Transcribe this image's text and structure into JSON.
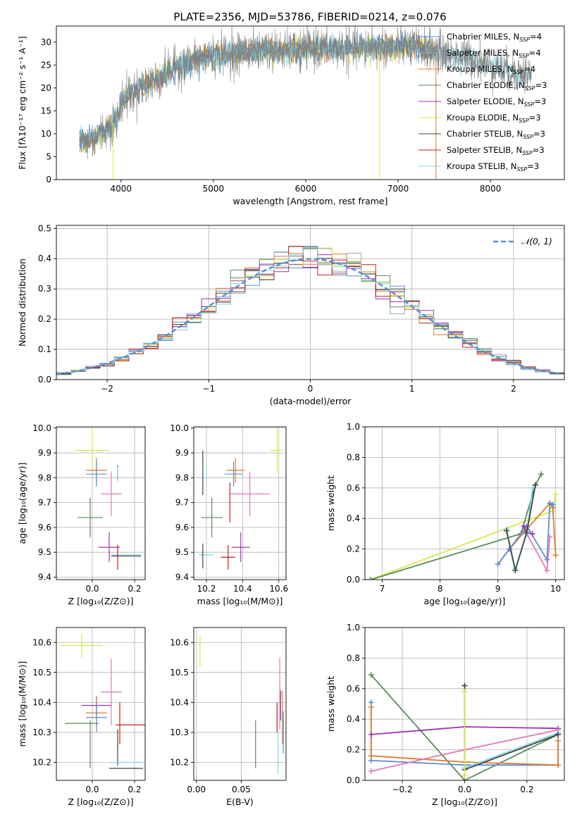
{
  "title": "PLATE=2356, MJD=53786, FIBERID=0214, z=0.076",
  "colors": {
    "chabrier_miles": "#5b8ed6",
    "salpeter_miles": "#9aa6b8",
    "kroupa_miles": "#e07c2a",
    "chabrier_elodie": "#5a8a5a",
    "salpeter_elodie": "#a032b0",
    "kroupa_elodie": "#d8e84a",
    "chabrier_stelib": "#444444",
    "salpeter_stelib": "#c81e1e",
    "kroupa_stelib": "#7fd8e8",
    "pink": "#e07ab8",
    "normal": "#5b8ed6",
    "grid": "#b0b0b0"
  },
  "chart_data": [
    {
      "id": "spectrum",
      "type": "line",
      "xlabel": "wavelength [Angstrom, rest frame]",
      "ylabel": "Flux [fλ10⁻¹⁷ erg cm⁻² s⁻¹ A⁻¹]",
      "xlim": [
        3300,
        8800
      ],
      "ylim": [
        0,
        33.5
      ],
      "xticks": [
        4000,
        5000,
        6000,
        7000,
        8000
      ],
      "yticks": [
        0,
        5,
        10,
        15,
        20,
        25,
        30
      ],
      "grid": false,
      "legend": "upper-right",
      "legend_entries": [
        {
          "label": "Chabrier MILES, N",
          "sub": "SSP",
          "tail": "=4",
          "color": "chabrier_miles"
        },
        {
          "label": "Salpeter MILES, N",
          "sub": "SSP",
          "tail": "=4",
          "color": "salpeter_miles"
        },
        {
          "label": "Kroupa MILES, N",
          "sub": "SSP",
          "tail": "=4",
          "color": "kroupa_miles"
        },
        {
          "label": "Chabrier ELODIE, N",
          "sub": "SSP",
          "tail": "=3",
          "color": "chabrier_elodie"
        },
        {
          "label": "Salpeter ELODIE, N",
          "sub": "SSP",
          "tail": "=3",
          "color": "salpeter_elodie"
        },
        {
          "label": "Kroupa ELODIE, N",
          "sub": "SSP",
          "tail": "=3",
          "color": "kroupa_elodie"
        },
        {
          "label": "Chabrier STELIB, N",
          "sub": "SSP",
          "tail": "=3",
          "color": "chabrier_stelib"
        },
        {
          "label": "Salpeter STELIB, N",
          "sub": "SSP",
          "tail": "=3",
          "color": "salpeter_stelib"
        },
        {
          "label": "Kroupa STELIB, N",
          "sub": "SSP",
          "tail": "=3",
          "color": "kroupa_stelib"
        }
      ],
      "data_range": [
        3550,
        8450
      ],
      "continuum": [
        [
          3550,
          8
        ],
        [
          3700,
          9
        ],
        [
          3900,
          12
        ],
        [
          3950,
          13
        ],
        [
          4000,
          17
        ],
        [
          4200,
          20
        ],
        [
          4400,
          22
        ],
        [
          4600,
          24.5
        ],
        [
          4800,
          26
        ],
        [
          5000,
          27
        ],
        [
          5200,
          27.5
        ],
        [
          5400,
          28
        ],
        [
          5600,
          28.5
        ],
        [
          5800,
          28
        ],
        [
          6000,
          28.5
        ],
        [
          6200,
          28.5
        ],
        [
          6500,
          28.5
        ],
        [
          6800,
          29
        ],
        [
          7000,
          29
        ],
        [
          7200,
          29
        ],
        [
          7400,
          28
        ],
        [
          7600,
          27
        ],
        [
          7800,
          26.5
        ],
        [
          8000,
          25
        ],
        [
          8200,
          23.5
        ],
        [
          8450,
          23
        ]
      ]
    },
    {
      "id": "residuals",
      "type": "histogram",
      "xlabel": "(data-model)/error",
      "ylabel": "Normed distribution",
      "xlim": [
        -2.5,
        2.5
      ],
      "ylim": [
        0,
        0.51
      ],
      "xticks": [
        -2,
        -1,
        0,
        1,
        2
      ],
      "yticks": [
        0.0,
        0.1,
        0.2,
        0.3,
        0.4,
        0.5
      ],
      "grid": true,
      "legend": "upper-right",
      "legend_label": "𝒩(0, 1)",
      "bins": 35
    },
    {
      "id": "age_vs_z",
      "type": "scatter",
      "xlabel": "Z [log₁₀(Z/Z⊙)]",
      "ylabel": "age  [log₁₀(age/yr)]",
      "xlim": [
        -0.17,
        0.25
      ],
      "ylim": [
        9.39,
        10.005
      ],
      "xticks": [
        0.0,
        0.2
      ],
      "yticks": [
        9.4,
        9.5,
        9.6,
        9.7,
        9.8,
        9.9,
        10.0
      ],
      "grid": true,
      "points": [
        {
          "x": 0.0,
          "y": 9.91,
          "xe": 0.08,
          "ye": 0.09,
          "color": "kroupa_elodie"
        },
        {
          "x": 0.02,
          "y": 9.83,
          "xe": 0.05,
          "ye": 0.05,
          "color": "kroupa_miles"
        },
        {
          "x": 0.02,
          "y": 9.815,
          "xe": 0.05,
          "ye": 0.05,
          "color": "chabrier_miles"
        },
        {
          "x": 0.12,
          "y": 9.82,
          "xe": 0.0,
          "ye": 0.03,
          "color": "chabrier_stelib"
        },
        {
          "x": 0.12,
          "y": 9.815,
          "xe": 0.0,
          "ye": 0.03,
          "color": "kroupa_stelib"
        },
        {
          "x": 0.09,
          "y": 9.735,
          "xe": 0.05,
          "ye": 0.09,
          "color": "pink"
        },
        {
          "x": -0.01,
          "y": 9.64,
          "xe": 0.06,
          "ye": 0.08,
          "color": "chabrier_elodie"
        },
        {
          "x": 0.08,
          "y": 9.52,
          "xe": 0.05,
          "ye": 0.06,
          "color": "salpeter_elodie"
        },
        {
          "x": 0.16,
          "y": 9.49,
          "xe": 0.07,
          "ye": 0.0,
          "color": "kroupa_stelib"
        },
        {
          "x": 0.16,
          "y": 9.485,
          "xe": 0.07,
          "ye": 0.0,
          "color": "chabrier_stelib"
        },
        {
          "x": 0.12,
          "y": 9.48,
          "xe": 0.0,
          "ye": 0.05,
          "color": "salpeter_stelib"
        }
      ]
    },
    {
      "id": "age_vs_mass",
      "type": "scatter",
      "xlabel": "mass [log₁₀(M/M⊙)]",
      "ylabel": "",
      "xlim": [
        10.13,
        10.64
      ],
      "ylim": [
        9.39,
        10.005
      ],
      "xticks": [
        10.2,
        10.4,
        10.6
      ],
      "yticks": [
        9.4,
        9.5,
        9.6,
        9.7,
        9.8,
        9.9,
        10.0
      ],
      "grid": true,
      "points": [
        {
          "x": 10.59,
          "y": 9.91,
          "xe": 0.04,
          "ye": 0.09,
          "color": "kroupa_elodie"
        },
        {
          "x": 10.36,
          "y": 9.83,
          "xe": 0.05,
          "ye": 0.05,
          "color": "kroupa_miles"
        },
        {
          "x": 10.35,
          "y": 9.815,
          "xe": 0.05,
          "ye": 0.05,
          "color": "chabrier_miles"
        },
        {
          "x": 10.18,
          "y": 9.82,
          "xe": 0.0,
          "ye": 0.09,
          "color": "chabrier_stelib"
        },
        {
          "x": 10.2,
          "y": 9.815,
          "xe": 0.0,
          "ye": 0.03,
          "color": "kroupa_stelib"
        },
        {
          "x": 10.44,
          "y": 9.735,
          "xe": 0.11,
          "ye": 0.09,
          "color": "pink"
        },
        {
          "x": 10.33,
          "y": 9.7,
          "xe": 0.0,
          "ye": 0.08,
          "color": "salpeter_stelib"
        },
        {
          "x": 10.23,
          "y": 9.64,
          "xe": 0.06,
          "ye": 0.08,
          "color": "chabrier_elodie"
        },
        {
          "x": 10.39,
          "y": 9.52,
          "xe": 0.05,
          "ye": 0.06,
          "color": "salpeter_elodie"
        },
        {
          "x": 10.2,
          "y": 9.49,
          "xe": 0.04,
          "ye": 0.0,
          "color": "kroupa_stelib"
        },
        {
          "x": 10.18,
          "y": 9.485,
          "xe": 0.0,
          "ye": 0.05,
          "color": "chabrier_stelib"
        },
        {
          "x": 10.32,
          "y": 9.48,
          "xe": 0.04,
          "ye": 0.05,
          "color": "salpeter_stelib"
        }
      ]
    },
    {
      "id": "mw_vs_age",
      "type": "line",
      "xlabel": "age  [log₁₀(age/yr)]",
      "ylabel": "mass weight",
      "xlim": [
        6.7,
        10.15
      ],
      "ylim": [
        0,
        1.0
      ],
      "xticks": [
        7,
        8,
        9,
        10
      ],
      "yticks": [
        0.0,
        0.2,
        0.4,
        0.6,
        0.8,
        1.0
      ],
      "grid": true,
      "series": [
        {
          "color": "kroupa_elodie",
          "x": [
            6.8,
            9.95,
            10.0
          ],
          "y": [
            0.0,
            0.45,
            0.56
          ]
        },
        {
          "color": "chabrier_elodie",
          "x": [
            6.8,
            9.4,
            9.65,
            9.75
          ],
          "y": [
            0.0,
            0.3,
            0.62,
            0.69
          ]
        },
        {
          "color": "kroupa_miles",
          "x": [
            9.0,
            9.2,
            9.5,
            9.9,
            9.95,
            10.0
          ],
          "y": [
            0.1,
            0.2,
            0.33,
            0.5,
            0.47,
            0.16
          ]
        },
        {
          "color": "chabrier_miles",
          "x": [
            9.0,
            9.2,
            9.5,
            9.85,
            9.9,
            9.95
          ],
          "y": [
            0.1,
            0.2,
            0.35,
            0.13,
            0.5,
            0.49
          ]
        },
        {
          "color": "salpeter_elodie",
          "x": [
            9.45,
            9.5,
            9.6
          ],
          "y": [
            0.35,
            0.3,
            0.3
          ]
        },
        {
          "color": "pink",
          "x": [
            9.5,
            9.85,
            9.9
          ],
          "y": [
            0.3,
            0.06,
            0.28
          ]
        },
        {
          "color": "kroupa_stelib",
          "x": [
            9.15,
            9.3,
            9.5,
            9.6
          ],
          "y": [
            0.33,
            0.07,
            0.3,
            0.6
          ]
        },
        {
          "color": "chabrier_stelib",
          "x": [
            9.15,
            9.3,
            9.5,
            9.65
          ],
          "y": [
            0.32,
            0.06,
            0.31,
            0.62
          ]
        }
      ]
    },
    {
      "id": "mass_vs_z",
      "type": "scatter",
      "xlabel": "Z [log₁₀(Z/Z⊙)]",
      "ylabel": "mass [log₁₀(M/M⊙)]",
      "xlim": [
        -0.17,
        0.25
      ],
      "ylim": [
        10.14,
        10.65
      ],
      "xticks": [
        0.0,
        0.2
      ],
      "yticks": [
        10.2,
        10.3,
        10.4,
        10.5,
        10.6
      ],
      "grid": true,
      "points": [
        {
          "x": -0.05,
          "y": 10.59,
          "xe": 0.1,
          "ye": 0.04,
          "color": "kroupa_elodie"
        },
        {
          "x": 0.09,
          "y": 10.435,
          "xe": 0.05,
          "ye": 0.11,
          "color": "pink"
        },
        {
          "x": 0.02,
          "y": 10.39,
          "xe": 0.07,
          "ye": 0.03,
          "color": "salpeter_elodie"
        },
        {
          "x": 0.02,
          "y": 10.365,
          "xe": 0.05,
          "ye": 0.05,
          "color": "kroupa_miles"
        },
        {
          "x": 0.02,
          "y": 10.35,
          "xe": 0.05,
          "ye": 0.05,
          "color": "chabrier_miles"
        },
        {
          "x": -0.05,
          "y": 10.33,
          "xe": 0.08,
          "ye": 0.0,
          "color": "chabrier_elodie"
        },
        {
          "x": -0.01,
          "y": 10.26,
          "xe": 0.0,
          "ye": 0.08,
          "color": "chabrier_elodie"
        },
        {
          "x": 0.18,
          "y": 10.325,
          "xe": 0.07,
          "ye": 0.0,
          "color": "salpeter_stelib"
        },
        {
          "x": 0.13,
          "y": 10.33,
          "xe": 0.0,
          "ye": 0.07,
          "color": "salpeter_stelib"
        },
        {
          "x": 0.12,
          "y": 10.25,
          "xe": 0.0,
          "ye": 0.06,
          "color": "chabrier_stelib"
        },
        {
          "x": 0.16,
          "y": 10.2,
          "xe": 0.08,
          "ye": 0.0,
          "color": "kroupa_stelib"
        },
        {
          "x": 0.16,
          "y": 10.18,
          "xe": 0.08,
          "ye": 0.0,
          "color": "chabrier_stelib"
        }
      ]
    },
    {
      "id": "mass_vs_ebv",
      "type": "scatter",
      "xlabel": "E(B-V)",
      "ylabel": "",
      "xlim": [
        -0.003,
        0.1
      ],
      "ylim": [
        10.14,
        10.65
      ],
      "xticks": [
        0.0,
        0.05
      ],
      "yticks": [
        10.2,
        10.3,
        10.4,
        10.5,
        10.6
      ],
      "grid": true,
      "points": [
        {
          "x": 0.004,
          "y": 10.57,
          "xe": 0.0,
          "ye": 0.05,
          "color": "kroupa_elodie"
        },
        {
          "x": 0.066,
          "y": 10.26,
          "xe": 0.0,
          "ye": 0.08,
          "color": "chabrier_elodie"
        },
        {
          "x": 0.09,
          "y": 10.35,
          "xe": 0.0,
          "ye": 0.05,
          "color": "salpeter_stelib"
        },
        {
          "x": 0.093,
          "y": 10.43,
          "xe": 0.0,
          "ye": 0.12,
          "color": "pink"
        },
        {
          "x": 0.094,
          "y": 10.39,
          "xe": 0.0,
          "ye": 0.05,
          "color": "salpeter_elodie"
        },
        {
          "x": 0.096,
          "y": 10.35,
          "xe": 0.0,
          "ye": 0.09,
          "color": "kroupa_miles"
        },
        {
          "x": 0.097,
          "y": 10.3,
          "xe": 0.0,
          "ye": 0.07,
          "color": "chabrier_miles"
        },
        {
          "x": 0.091,
          "y": 10.23,
          "xe": 0.0,
          "ye": 0.07,
          "color": "kroupa_stelib"
        }
      ]
    },
    {
      "id": "mw_vs_z",
      "type": "line",
      "xlabel": "Z [log₁₀(Z/Z⊙)]",
      "ylabel": "mass weight",
      "xlim": [
        -0.32,
        0.32
      ],
      "ylim": [
        0,
        1.0
      ],
      "xticks": [
        -0.2,
        0.0,
        0.2
      ],
      "yticks": [
        0.0,
        0.2,
        0.4,
        0.6,
        0.8,
        1.0
      ],
      "grid": true,
      "series": [
        {
          "color": "chabrier_elodie",
          "x": [
            -0.3,
            0.0,
            0.3
          ],
          "y": [
            0.69,
            0.0,
            0.3
          ]
        },
        {
          "color": "chabrier_miles",
          "x": [
            -0.3,
            -0.3,
            0.0,
            0.3,
            0.3
          ],
          "y": [
            0.51,
            0.13,
            0.1,
            0.1,
            0.31
          ]
        },
        {
          "color": "kroupa_miles",
          "x": [
            -0.3,
            -0.3,
            0.0,
            0.3,
            0.3
          ],
          "y": [
            0.48,
            0.16,
            0.12,
            0.1,
            0.26
          ]
        },
        {
          "color": "salpeter_elodie",
          "x": [
            -0.3,
            0.0,
            0.3
          ],
          "y": [
            0.3,
            0.35,
            0.34
          ]
        },
        {
          "color": "pink",
          "x": [
            -0.3,
            0.0,
            0.3
          ],
          "y": [
            0.06,
            0.2,
            0.33
          ]
        },
        {
          "color": "kroupa_stelib",
          "x": [
            0.0,
            0.0,
            0.3
          ],
          "y": [
            0.62,
            0.08,
            0.31
          ]
        },
        {
          "color": "chabrier_stelib",
          "x": [
            0.0,
            0.0,
            0.3
          ],
          "y": [
            0.62,
            0.07,
            0.3
          ]
        },
        {
          "color": "kroupa_elodie",
          "x": [
            0.0,
            0.0
          ],
          "y": [
            0.58,
            0.03
          ]
        }
      ]
    }
  ]
}
